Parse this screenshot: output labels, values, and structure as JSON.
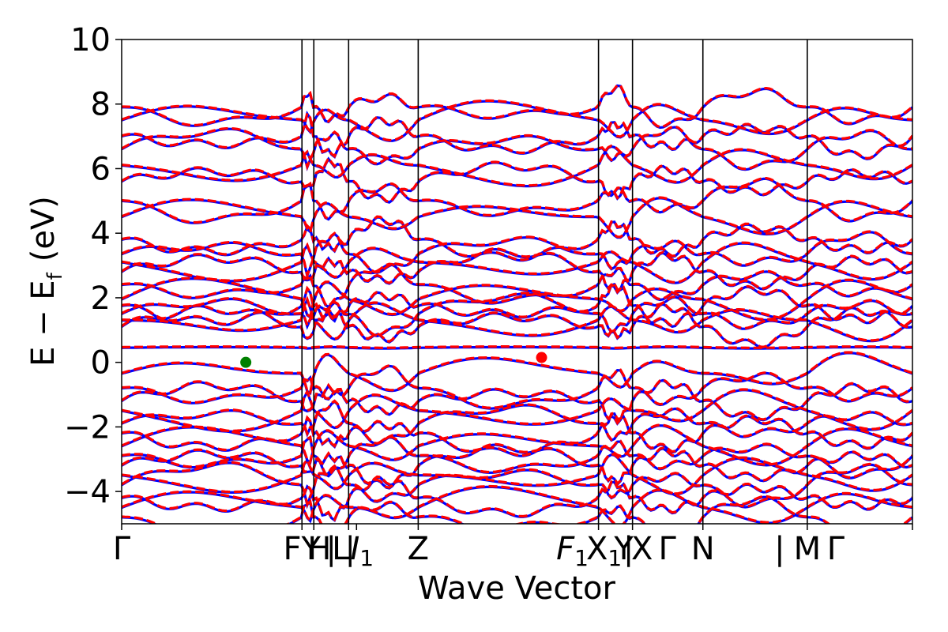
{
  "chart_data": {
    "type": "line",
    "title": "",
    "xlabel": "Wave Vector",
    "ylabel": "E − E",
    "ylabel_sub": "f",
    "ylabel_unit": "(eV)",
    "ylim": [
      -5,
      10
    ],
    "yticks": [
      -4,
      -2,
      0,
      2,
      4,
      6,
      8,
      10
    ],
    "ytick_labels": [
      "−4",
      "−2",
      "0",
      "2",
      "4",
      "6",
      "8",
      "10"
    ],
    "xlim": [
      0,
      1
    ],
    "kpoints": [
      {
        "x": 0.0,
        "main": "Γ",
        "sub": ""
      },
      {
        "x": 0.228,
        "main": "FY",
        "sub": ""
      },
      {
        "x": 0.243,
        "main": "H",
        "sub": ""
      },
      {
        "x": 0.287,
        "main": "|",
        "sub": ""
      },
      {
        "x": 0.287,
        "main": "L",
        "sub": ""
      },
      {
        "x": 0.287,
        "main": "|",
        "sub": ""
      },
      {
        "x": 0.297,
        "main": "I",
        "sub": "1"
      },
      {
        "x": 0.375,
        "main": "Z",
        "sub": ""
      },
      {
        "x": 0.603,
        "main": "F",
        "sub": "1"
      },
      {
        "x": 0.603,
        "main": "X",
        "sub": "1"
      },
      {
        "x": 0.646,
        "main": "Y",
        "sub": ""
      },
      {
        "x": 0.646,
        "main": "|",
        "sub": ""
      },
      {
        "x": 0.646,
        "main": "X",
        "sub": ""
      },
      {
        "x": 0.735,
        "main": "Γ",
        "sub": ""
      },
      {
        "x": 0.867,
        "main": "N",
        "sub": ""
      },
      {
        "x": 0.867,
        "main": "|",
        "sub": ""
      },
      {
        "x": 0.867,
        "main": "M",
        "sub": ""
      },
      {
        "x": 1.0,
        "main": "Γ",
        "sub": ""
      }
    ],
    "tick_text": "Γ|FYH|L|I1|Z|F1X1|Y|X|Γ|N|M|Γ",
    "vlines": [
      0.228,
      0.243,
      0.287,
      0.375,
      0.603,
      0.646,
      0.735,
      0.867
    ],
    "series": [
      {
        "color": "#0000ff",
        "style": "solid"
      },
      {
        "color": "#ff0000",
        "style": "dashed"
      }
    ],
    "band_anchor_energies": {
      "valence": [
        -0.35,
        -0.8,
        -1.2,
        -1.5,
        -1.9,
        -2.2,
        -2.6,
        -2.9,
        -3.2,
        -3.5,
        -3.8,
        -4.2,
        -4.5,
        -4.8
      ],
      "flat": [
        0.45
      ],
      "conduction": [
        1.1,
        1.3,
        1.5,
        1.75,
        1.95,
        2.4,
        2.8,
        3.1,
        3.35,
        3.8,
        4.5,
        5.0,
        5.6,
        6.1,
        6.6,
        7.0,
        7.5,
        7.9
      ]
    },
    "markers": [
      {
        "x": 0.157,
        "y": 0.0,
        "color": "#008000"
      },
      {
        "x": 0.531,
        "y": 0.15,
        "color": "#ff0000"
      }
    ]
  }
}
